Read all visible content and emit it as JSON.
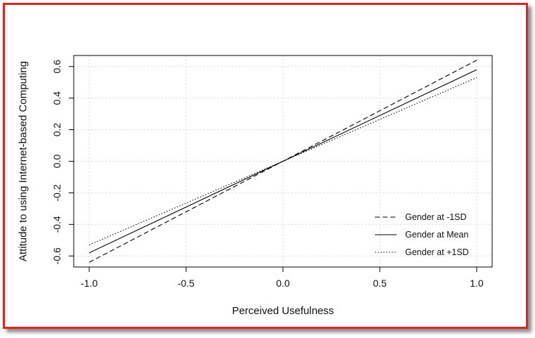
{
  "chart_data": {
    "type": "line",
    "xlabel": "Perceived Usefulness",
    "ylabel": "Attitude to using Internet-based Computing",
    "xlim": [
      -1.08,
      1.08
    ],
    "ylim": [
      -0.67,
      0.67
    ],
    "x_ticks": [
      "-1.0",
      "-0.5",
      "0.0",
      "0.5",
      "1.0"
    ],
    "y_ticks": [
      "-0.6",
      "-0.4",
      "-0.2",
      "0.0",
      "0.2",
      "0.4",
      "0.6"
    ],
    "x_tick_values": [
      -1.0,
      -0.5,
      0.0,
      0.5,
      1.0
    ],
    "y_tick_values": [
      -0.6,
      -0.4,
      -0.2,
      0.0,
      0.2,
      0.4,
      0.6
    ],
    "grid": true,
    "legend_position": "bottom-right",
    "series": [
      {
        "name": "Gender at -1SD",
        "style": "dashed",
        "x": [
          -1.0,
          1.0
        ],
        "y": [
          -0.64,
          0.64
        ]
      },
      {
        "name": "Gender at Mean",
        "style": "solid",
        "x": [
          -1.0,
          1.0
        ],
        "y": [
          -0.58,
          0.58
        ]
      },
      {
        "name": "Gender at +1SD",
        "style": "dotted",
        "x": [
          -1.0,
          1.0
        ],
        "y": [
          -0.53,
          0.53
        ]
      }
    ],
    "colors": {
      "line": "#000000",
      "grid": "#d9d9d9",
      "frame_border": "#e32222"
    }
  }
}
